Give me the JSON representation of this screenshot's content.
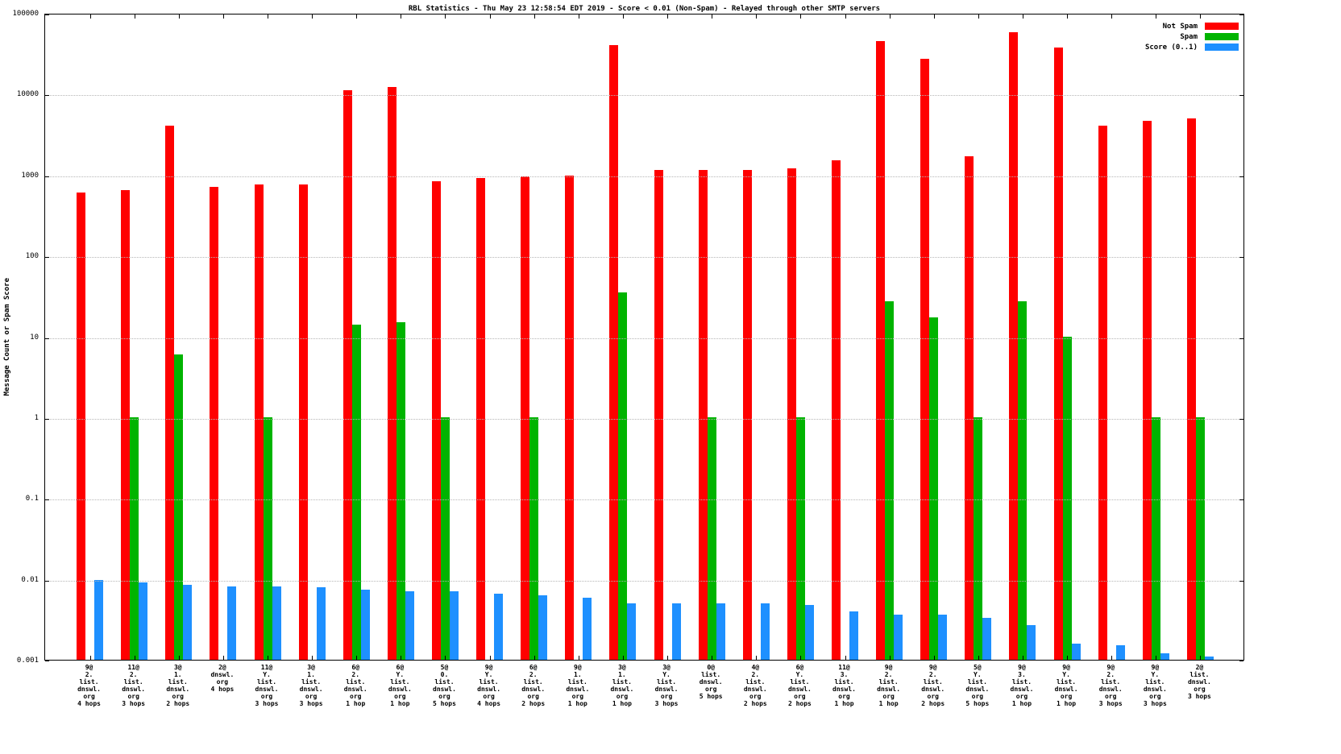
{
  "chart_data": {
    "type": "bar",
    "title": "RBL Statistics - Thu May 23 12:58:54 EDT 2019 - Score < 0.01 (Non-Spam) - Relayed through other SMTP servers",
    "ylabel": "Message Count or Spam Score",
    "xlabel": "",
    "y_scale": "log",
    "ylim": [
      0.001,
      100000
    ],
    "yticks": [
      "0.001",
      "0.01",
      "0.1",
      "1",
      "10",
      "100",
      "1000",
      "10000",
      "100000"
    ],
    "grid": true,
    "legend_position": "top-right",
    "grid_color": "#b6b6b6",
    "categories": [
      "9@\n2.\nlist.\ndnswl.\norg\n4 hops",
      "11@\n2.\nlist.\ndnswl.\norg\n3 hops",
      "3@\n1.\nlist.\ndnswl.\norg\n2 hops",
      "2@\ndnswl.\norg\n4 hops",
      "11@\nY.\nlist.\ndnswl.\norg\n3 hops",
      "3@\n1.\nlist.\ndnswl.\norg\n3 hops",
      "6@\n2.\nlist.\ndnswl.\norg\n1 hop",
      "6@\nY.\nlist.\ndnswl.\norg\n1 hop",
      "5@\n0.\nlist.\ndnswl.\norg\n5 hops",
      "9@\nY.\nlist.\ndnswl.\norg\n4 hops",
      "6@\n2.\nlist.\ndnswl.\norg\n2 hops",
      "9@\n1.\nlist.\ndnswl.\norg\n1 hop",
      "3@\n1.\nlist.\ndnswl.\norg\n1 hop",
      "3@\nY.\nlist.\ndnswl.\norg\n3 hops",
      "0@\nlist.\ndnswl.\norg\n5 hops",
      "4@\n2.\nlist.\ndnswl.\norg\n2 hops",
      "6@\nY.\nlist.\ndnswl.\norg\n2 hops",
      "11@\n3.\nlist.\ndnswl.\norg\n1 hop",
      "9@\n2.\nlist.\ndnswl.\norg\n1 hop",
      "9@\n2.\nlist.\ndnswl.\norg\n2 hops",
      "5@\nY.\nlist.\ndnswl.\norg\n5 hops",
      "9@\n3.\nlist.\ndnswl.\norg\n1 hop",
      "9@\nY.\nlist.\ndnswl.\norg\n1 hop",
      "9@\n2.\nlist.\ndnswl.\norg\n3 hops",
      "9@\nY.\nlist.\ndnswl.\norg\n3 hops",
      "2@\nlist.\ndnswl.\norg\n3 hops"
    ],
    "series": [
      {
        "name": "Not Spam",
        "key": "not-spam",
        "color": "#ff0000",
        "values": [
          600,
          650,
          4000,
          700,
          750,
          750,
          11000,
          12000,
          820,
          900,
          950,
          980,
          40000,
          1150,
          1150,
          1150,
          1200,
          1500,
          45000,
          27000,
          1700,
          58000,
          37000,
          4000,
          4600,
          5000
        ]
      },
      {
        "name": "Spam",
        "key": "spam",
        "color": "#00b400",
        "values": [
          null,
          1,
          6,
          null,
          1,
          null,
          14,
          15,
          1,
          null,
          1,
          null,
          35,
          null,
          1,
          null,
          1,
          null,
          27,
          17,
          1,
          27,
          10,
          null,
          1,
          1
        ]
      },
      {
        "name": "Score (0..1)",
        "key": "score",
        "color": "#1e90ff",
        "values": [
          0.0098,
          0.009,
          0.0085,
          0.008,
          0.008,
          0.0078,
          0.0074,
          0.007,
          0.007,
          0.0065,
          0.0062,
          0.0058,
          0.005,
          0.005,
          0.005,
          0.005,
          0.0048,
          0.004,
          0.0036,
          0.0036,
          0.0033,
          0.0027,
          0.0016,
          0.0015,
          0.0012,
          0.0011
        ]
      }
    ]
  }
}
